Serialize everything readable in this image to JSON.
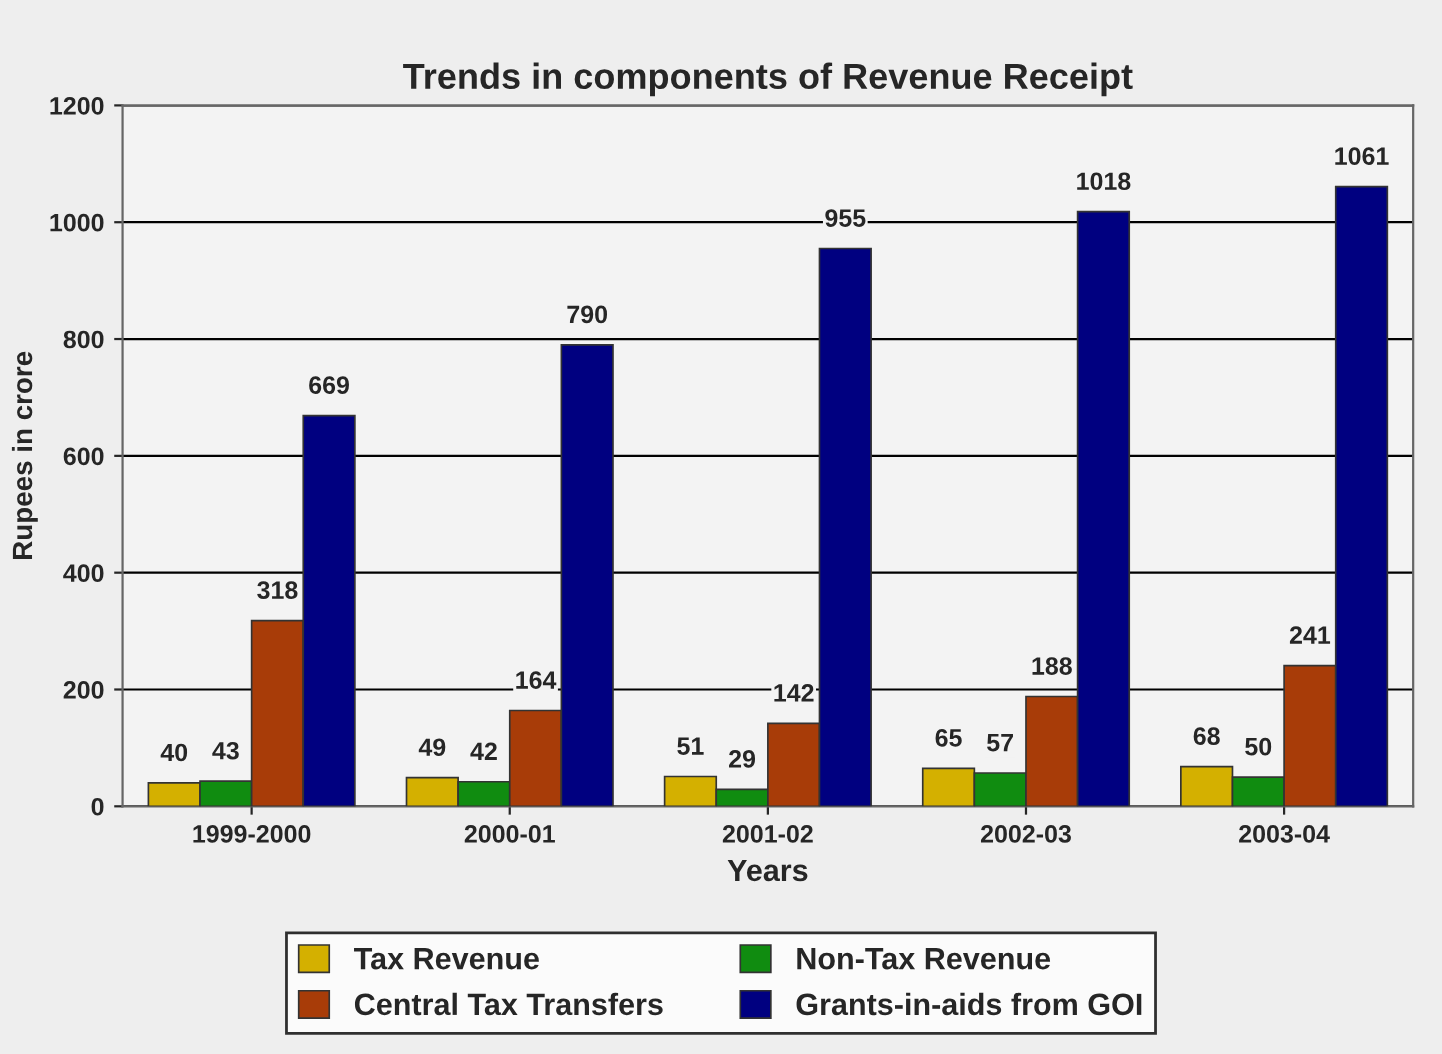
{
  "chart_data": {
    "type": "bar",
    "title": "Trends in components of Revenue Receipt",
    "xlabel": "Years",
    "ylabel": "Rupees in crore",
    "categories": [
      "1999-2000",
      "2000-01",
      "2001-02",
      "2002-03",
      "2003-04"
    ],
    "series": [
      {
        "name": "Tax Revenue",
        "color": "#d4b000",
        "values": [
          40,
          49,
          51,
          65,
          68
        ]
      },
      {
        "name": "Non-Tax Revenue",
        "color": "#108c10",
        "values": [
          43,
          42,
          29,
          57,
          50
        ]
      },
      {
        "name": "Central Tax Transfers",
        "color": "#a83c08",
        "values": [
          318,
          164,
          142,
          188,
          241
        ]
      },
      {
        "name": "Grants-in-aids from GOI",
        "color": "#000080",
        "values": [
          669,
          790,
          955,
          1018,
          1061
        ]
      }
    ],
    "ylim": [
      0,
      1200
    ],
    "yticks": [
      0,
      200,
      400,
      600,
      800,
      1000,
      1200
    ],
    "grid": "y",
    "legend": "bottom",
    "data_labels": true
  }
}
